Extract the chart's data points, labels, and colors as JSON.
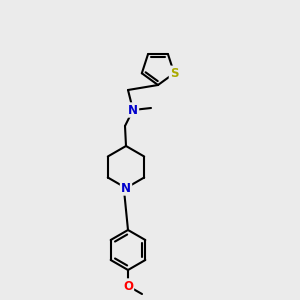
{
  "bg_color": "#ebebeb",
  "bond_color": "#000000",
  "bond_width": 1.5,
  "atom_colors": {
    "N": "#0000cc",
    "S": "#aaaa00",
    "O": "#ff0000",
    "C": "#000000"
  },
  "fig_size": [
    3.0,
    3.0
  ],
  "dpi": 100
}
